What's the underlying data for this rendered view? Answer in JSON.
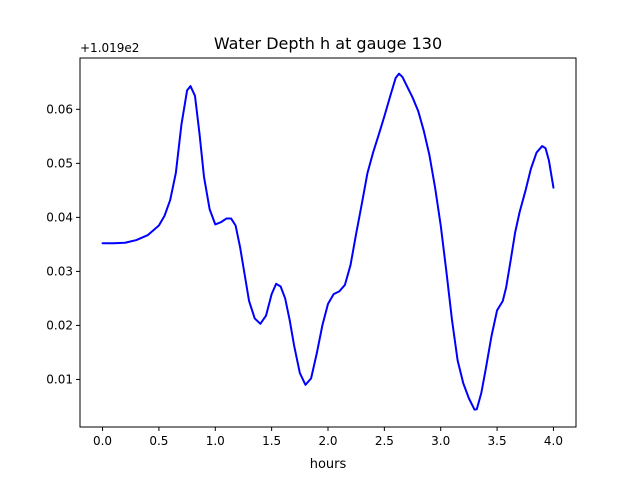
{
  "chart_data": {
    "type": "line",
    "title": "Water Depth h at gauge 130",
    "xlabel": "hours",
    "ylabel": "",
    "offset_label": "+1.019e2",
    "xlim": [
      -0.2,
      4.2
    ],
    "ylim": [
      0.0012,
      0.0695
    ],
    "x_ticks": [
      0.0,
      0.5,
      1.0,
      1.5,
      2.0,
      2.5,
      3.0,
      3.5,
      4.0
    ],
    "x_tick_labels": [
      "0.0",
      "0.5",
      "1.0",
      "1.5",
      "2.0",
      "2.5",
      "3.0",
      "3.5",
      "4.0"
    ],
    "y_ticks": [
      0.01,
      0.02,
      0.03,
      0.04,
      0.05,
      0.06
    ],
    "y_tick_labels": [
      "0.01",
      "0.02",
      "0.03",
      "0.04",
      "0.05",
      "0.06"
    ],
    "grid": false,
    "series": [
      {
        "color": "#0000ff",
        "x": [
          0.0,
          0.1,
          0.2,
          0.3,
          0.4,
          0.5,
          0.55,
          0.6,
          0.65,
          0.7,
          0.75,
          0.78,
          0.82,
          0.86,
          0.9,
          0.95,
          1.0,
          1.05,
          1.1,
          1.14,
          1.18,
          1.22,
          1.26,
          1.3,
          1.35,
          1.4,
          1.45,
          1.5,
          1.54,
          1.58,
          1.62,
          1.66,
          1.7,
          1.75,
          1.8,
          1.85,
          1.9,
          1.95,
          2.0,
          2.05,
          2.1,
          2.15,
          2.2,
          2.25,
          2.3,
          2.35,
          2.4,
          2.45,
          2.5,
          2.55,
          2.6,
          2.63,
          2.66,
          2.7,
          2.75,
          2.8,
          2.85,
          2.9,
          2.95,
          3.0,
          3.05,
          3.1,
          3.15,
          3.2,
          3.25,
          3.3,
          3.32,
          3.36,
          3.4,
          3.45,
          3.5,
          3.55,
          3.58,
          3.62,
          3.66,
          3.7,
          3.75,
          3.8,
          3.85,
          3.9,
          3.93,
          3.96,
          4.0
        ],
        "y": [
          0.0352,
          0.0352,
          0.0353,
          0.0358,
          0.0367,
          0.0385,
          0.0403,
          0.0432,
          0.0482,
          0.0572,
          0.0635,
          0.0643,
          0.0625,
          0.0555,
          0.0475,
          0.0415,
          0.0387,
          0.0391,
          0.0398,
          0.0398,
          0.0385,
          0.0345,
          0.0295,
          0.0245,
          0.0213,
          0.0203,
          0.0218,
          0.0258,
          0.0277,
          0.0272,
          0.025,
          0.021,
          0.0162,
          0.0112,
          0.009,
          0.0102,
          0.0148,
          0.02,
          0.024,
          0.0258,
          0.0263,
          0.0275,
          0.0312,
          0.037,
          0.0425,
          0.0482,
          0.052,
          0.0553,
          0.0587,
          0.0623,
          0.0658,
          0.0666,
          0.066,
          0.0643,
          0.0622,
          0.0597,
          0.056,
          0.0515,
          0.0455,
          0.0385,
          0.03,
          0.021,
          0.0135,
          0.0093,
          0.0065,
          0.0044,
          0.0045,
          0.0075,
          0.012,
          0.018,
          0.0228,
          0.0245,
          0.027,
          0.032,
          0.0372,
          0.041,
          0.0448,
          0.049,
          0.052,
          0.0532,
          0.0528,
          0.0505,
          0.0455
        ]
      }
    ]
  }
}
